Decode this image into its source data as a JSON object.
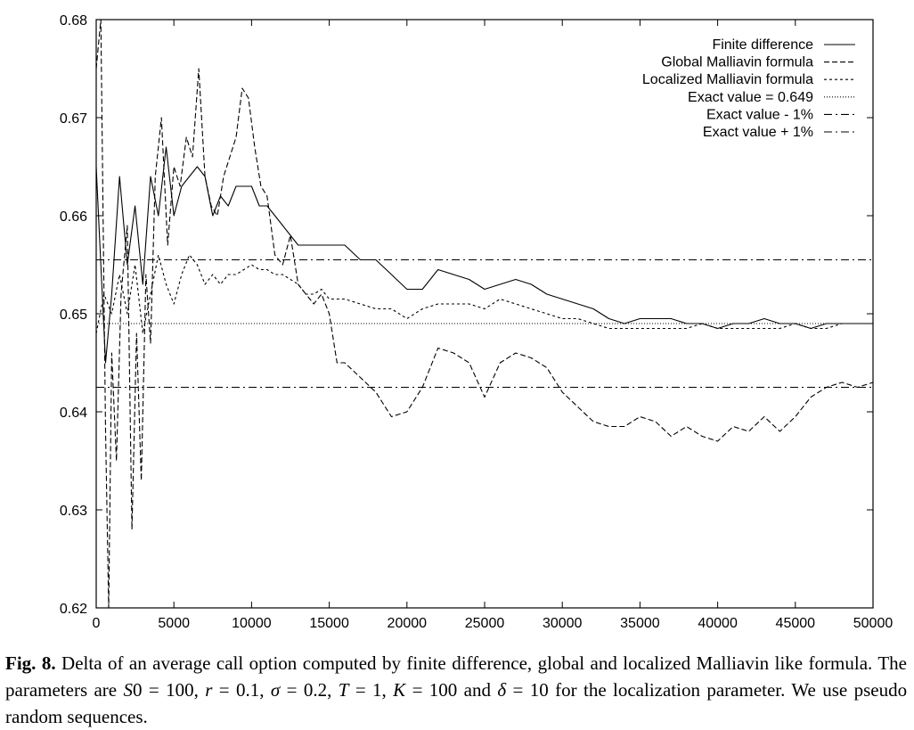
{
  "chart_data": {
    "type": "line",
    "xlabel": "",
    "ylabel": "",
    "xlim": [
      0,
      50000
    ],
    "ylim": [
      0.62,
      0.68
    ],
    "grid": false,
    "legend_position": "top-right",
    "x_ticks": [
      "0",
      "5000",
      "10000",
      "15000",
      "20000",
      "25000",
      "30000",
      "35000",
      "40000",
      "45000",
      "50000"
    ],
    "y_ticks": [
      "0.62",
      "0.63",
      "0.64",
      "0.65",
      "0.66",
      "0.67",
      "0.68"
    ],
    "series": [
      {
        "name": "Finite difference",
        "style": "solid",
        "x": [
          0,
          300,
          600,
          1000,
          1500,
          2000,
          2500,
          3000,
          3500,
          4000,
          4500,
          5000,
          5500,
          6000,
          6500,
          7000,
          7500,
          8000,
          8500,
          9000,
          9500,
          10000,
          10500,
          11000,
          11500,
          12000,
          12500,
          13000,
          13500,
          14000,
          15000,
          16000,
          17000,
          18000,
          19000,
          20000,
          21000,
          22000,
          23000,
          24000,
          25000,
          26000,
          27000,
          28000,
          29000,
          30000,
          31000,
          32000,
          33000,
          34000,
          35000,
          36000,
          37000,
          38000,
          39000,
          40000,
          41000,
          42000,
          43000,
          44000,
          45000,
          46000,
          47000,
          48000,
          49000,
          50000
        ],
        "y": [
          0.665,
          0.655,
          0.645,
          0.652,
          0.664,
          0.655,
          0.661,
          0.653,
          0.664,
          0.66,
          0.667,
          0.66,
          0.663,
          0.664,
          0.665,
          0.664,
          0.66,
          0.662,
          0.661,
          0.663,
          0.663,
          0.663,
          0.661,
          0.661,
          0.66,
          0.659,
          0.658,
          0.657,
          0.657,
          0.657,
          0.657,
          0.657,
          0.6555,
          0.6555,
          0.654,
          0.6525,
          0.6525,
          0.6545,
          0.654,
          0.6535,
          0.6525,
          0.653,
          0.6535,
          0.653,
          0.652,
          0.6515,
          0.651,
          0.6505,
          0.6495,
          0.649,
          0.6495,
          0.6495,
          0.6495,
          0.649,
          0.649,
          0.6485,
          0.649,
          0.649,
          0.6495,
          0.649,
          0.649,
          0.6485,
          0.649,
          0.649,
          0.649,
          0.649
        ]
      },
      {
        "name": "Global Malliavin formula",
        "style": "dashed",
        "x": [
          0,
          300,
          600,
          800,
          1000,
          1300,
          1600,
          2000,
          2300,
          2600,
          2900,
          3200,
          3500,
          3800,
          4200,
          4600,
          5000,
          5400,
          5800,
          6200,
          6600,
          7000,
          7400,
          7800,
          8200,
          8600,
          9000,
          9400,
          9800,
          10200,
          10600,
          11000,
          11500,
          12000,
          12500,
          13000,
          13500,
          14000,
          14500,
          15000,
          15500,
          16000,
          17000,
          18000,
          19000,
          20000,
          21000,
          22000,
          23000,
          24000,
          25000,
          26000,
          27000,
          28000,
          29000,
          30000,
          31000,
          32000,
          33000,
          34000,
          35000,
          36000,
          37000,
          38000,
          39000,
          40000,
          41000,
          42000,
          43000,
          44000,
          45000,
          46000,
          47000,
          48000,
          49000,
          50000
        ],
        "y": [
          0.675,
          0.68,
          0.638,
          0.62,
          0.646,
          0.635,
          0.652,
          0.659,
          0.628,
          0.648,
          0.633,
          0.654,
          0.647,
          0.664,
          0.67,
          0.657,
          0.665,
          0.663,
          0.668,
          0.666,
          0.675,
          0.664,
          0.661,
          0.66,
          0.664,
          0.666,
          0.668,
          0.673,
          0.672,
          0.667,
          0.663,
          0.662,
          0.656,
          0.655,
          0.658,
          0.653,
          0.652,
          0.651,
          0.652,
          0.65,
          0.645,
          0.645,
          0.6435,
          0.642,
          0.6395,
          0.64,
          0.6425,
          0.6465,
          0.646,
          0.645,
          0.6415,
          0.645,
          0.646,
          0.6455,
          0.6445,
          0.642,
          0.6405,
          0.639,
          0.6385,
          0.6385,
          0.6395,
          0.639,
          0.6375,
          0.6385,
          0.6375,
          0.637,
          0.6385,
          0.638,
          0.6395,
          0.638,
          0.6395,
          0.6415,
          0.6425,
          0.643,
          0.6425,
          0.643
        ]
      },
      {
        "name": "Localized Malliavin formula",
        "style": "dotted",
        "x": [
          0,
          500,
          1000,
          1500,
          2000,
          2500,
          3000,
          3500,
          4000,
          4500,
          5000,
          5500,
          6000,
          6500,
          7000,
          7500,
          8000,
          8500,
          9000,
          9500,
          10000,
          10500,
          11000,
          11500,
          12000,
          12500,
          13000,
          13500,
          14000,
          14500,
          15000,
          16000,
          17000,
          18000,
          19000,
          20000,
          21000,
          22000,
          23000,
          24000,
          25000,
          26000,
          27000,
          28000,
          29000,
          30000,
          31000,
          32000,
          33000,
          34000,
          35000,
          36000,
          37000,
          38000,
          39000,
          40000,
          41000,
          42000,
          43000,
          44000,
          45000,
          46000,
          47000,
          48000,
          49000,
          50000
        ],
        "y": [
          0.648,
          0.652,
          0.65,
          0.654,
          0.65,
          0.655,
          0.648,
          0.652,
          0.656,
          0.653,
          0.651,
          0.654,
          0.656,
          0.655,
          0.653,
          0.654,
          0.653,
          0.654,
          0.654,
          0.6545,
          0.655,
          0.6545,
          0.6545,
          0.654,
          0.654,
          0.6535,
          0.653,
          0.652,
          0.652,
          0.6525,
          0.6515,
          0.6515,
          0.651,
          0.6505,
          0.6505,
          0.6495,
          0.6505,
          0.651,
          0.651,
          0.651,
          0.6505,
          0.6515,
          0.651,
          0.6505,
          0.65,
          0.6495,
          0.6495,
          0.649,
          0.6485,
          0.6485,
          0.6485,
          0.6485,
          0.6485,
          0.6485,
          0.649,
          0.6485,
          0.6485,
          0.6485,
          0.6485,
          0.6485,
          0.649,
          0.6485,
          0.6485,
          0.649,
          0.649,
          0.649
        ]
      },
      {
        "name": "Exact value = 0.649",
        "style": "dotted-fine",
        "x": [
          0,
          50000
        ],
        "y": [
          0.649,
          0.649
        ]
      },
      {
        "name": "Exact value - 1%",
        "style": "dash-dot",
        "x": [
          0,
          50000
        ],
        "y": [
          0.6425,
          0.6425
        ]
      },
      {
        "name": "Exact value + 1%",
        "style": "dash-dot",
        "x": [
          0,
          50000
        ],
        "y": [
          0.6555,
          0.6555
        ]
      }
    ]
  },
  "caption": {
    "label": "Fig. 8.",
    "text_1": " Delta of an average call option computed by finite difference, global and localized Malliavin like formula. The parameters are ",
    "param_s0": "S",
    "param_s0_sub": "0 = 100, ",
    "param_r": "r",
    "param_r_val": " = 0.1, ",
    "param_sigma": "σ",
    "param_sigma_val": " = 0.2, ",
    "param_T": "T",
    "param_T_val": " = 1, ",
    "param_K": "K",
    "param_K_val": " = 100",
    "text_2": " and ",
    "param_delta": "δ",
    "param_delta_val": " = 10",
    "text_3": " for the localization parameter. We use pseudo random sequences."
  }
}
